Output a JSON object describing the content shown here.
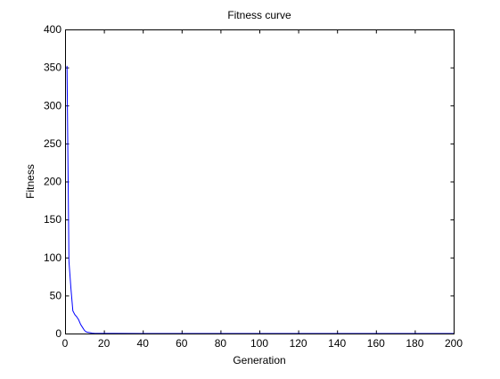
{
  "chart_data": {
    "type": "line",
    "title": "Fitness curve",
    "xlabel": "Generation",
    "ylabel": "Fitness",
    "xlim": [
      0,
      200
    ],
    "ylim": [
      0,
      400
    ],
    "xticks": [
      0,
      20,
      40,
      60,
      80,
      100,
      120,
      140,
      160,
      180,
      200
    ],
    "yticks": [
      0,
      50,
      100,
      150,
      200,
      250,
      300,
      350,
      400
    ],
    "grid": false,
    "legend": "none",
    "series": [
      {
        "color": "#0000ff",
        "x": [
          1,
          2,
          3,
          4,
          5,
          6,
          7,
          8,
          9,
          10,
          11,
          12,
          13,
          14,
          15,
          20,
          40,
          60,
          80,
          100,
          120,
          140,
          160,
          180,
          200
        ],
        "y": [
          352,
          95,
          60,
          30,
          25,
          22,
          18,
          12,
          8,
          4,
          2,
          1.5,
          1,
          0.5,
          0.3,
          0.1,
          0.05,
          0.05,
          0.05,
          0.05,
          0.05,
          0.05,
          0.05,
          0.05,
          0.05
        ]
      }
    ]
  }
}
